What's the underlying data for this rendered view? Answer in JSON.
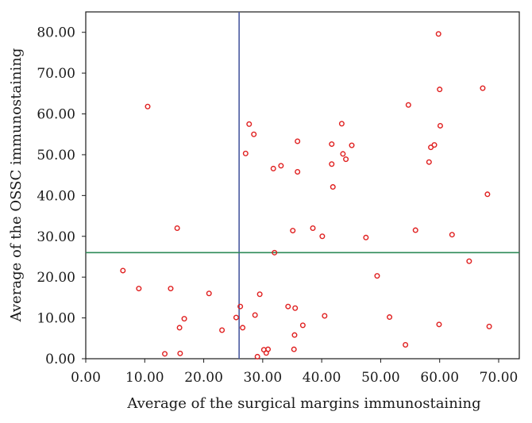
{
  "chart_data": {
    "type": "scatter",
    "xlabel": "Average of the surgical margins immunostaining",
    "ylabel": "Average of the OSSC immunostaining",
    "xlim": [
      0,
      73.5
    ],
    "ylim": [
      0,
      85
    ],
    "x_ticks": [
      "0.00",
      "10.00",
      "20.00",
      "30.00",
      "40.00",
      "50.00",
      "60.00",
      "70.00"
    ],
    "y_ticks": [
      "0.00",
      "10.00",
      "20.00",
      "30.00",
      "40.00",
      "50.00",
      "60.00",
      "70.00",
      "80.00"
    ],
    "reference_lines": {
      "vertical_x": 26.0,
      "horizontal_y": 26.0
    },
    "grid": false,
    "legend": "none",
    "colors": {
      "points": "#e02020",
      "vertical_line": "#4a5aa0",
      "horizontal_line": "#2e8b57",
      "axes": "#1a1a1a"
    },
    "points": [
      {
        "x": 6.3,
        "y": 21.6
      },
      {
        "x": 9.0,
        "y": 17.2
      },
      {
        "x": 10.5,
        "y": 61.8
      },
      {
        "x": 13.4,
        "y": 1.2
      },
      {
        "x": 14.4,
        "y": 17.2
      },
      {
        "x": 15.5,
        "y": 32.0
      },
      {
        "x": 15.9,
        "y": 7.6
      },
      {
        "x": 16.0,
        "y": 1.3
      },
      {
        "x": 16.7,
        "y": 9.8
      },
      {
        "x": 20.9,
        "y": 16.0
      },
      {
        "x": 23.1,
        "y": 7.0
      },
      {
        "x": 25.5,
        "y": 10.1
      },
      {
        "x": 26.2,
        "y": 12.8
      },
      {
        "x": 26.6,
        "y": 7.6
      },
      {
        "x": 27.1,
        "y": 50.3
      },
      {
        "x": 27.7,
        "y": 57.5
      },
      {
        "x": 28.5,
        "y": 55.0
      },
      {
        "x": 28.7,
        "y": 10.7
      },
      {
        "x": 29.1,
        "y": 0.5
      },
      {
        "x": 29.5,
        "y": 15.8
      },
      {
        "x": 30.2,
        "y": 2.2
      },
      {
        "x": 30.6,
        "y": 1.4
      },
      {
        "x": 30.9,
        "y": 2.3
      },
      {
        "x": 31.8,
        "y": 46.6
      },
      {
        "x": 32.0,
        "y": 26.0
      },
      {
        "x": 33.1,
        "y": 47.3
      },
      {
        "x": 34.3,
        "y": 12.8
      },
      {
        "x": 35.1,
        "y": 31.4
      },
      {
        "x": 35.3,
        "y": 2.3
      },
      {
        "x": 35.4,
        "y": 5.8
      },
      {
        "x": 35.5,
        "y": 12.4
      },
      {
        "x": 35.9,
        "y": 53.3
      },
      {
        "x": 35.9,
        "y": 45.8
      },
      {
        "x": 36.8,
        "y": 8.2
      },
      {
        "x": 38.5,
        "y": 32.0
      },
      {
        "x": 40.1,
        "y": 30.0
      },
      {
        "x": 40.5,
        "y": 10.5
      },
      {
        "x": 41.7,
        "y": 52.6
      },
      {
        "x": 41.7,
        "y": 47.7
      },
      {
        "x": 41.9,
        "y": 42.1
      },
      {
        "x": 43.4,
        "y": 57.6
      },
      {
        "x": 43.6,
        "y": 50.2
      },
      {
        "x": 44.1,
        "y": 48.9
      },
      {
        "x": 45.1,
        "y": 52.3
      },
      {
        "x": 47.5,
        "y": 29.7
      },
      {
        "x": 49.4,
        "y": 20.3
      },
      {
        "x": 51.5,
        "y": 10.2
      },
      {
        "x": 54.2,
        "y": 3.4
      },
      {
        "x": 54.7,
        "y": 62.2
      },
      {
        "x": 55.9,
        "y": 31.5
      },
      {
        "x": 58.2,
        "y": 48.2
      },
      {
        "x": 58.5,
        "y": 51.8
      },
      {
        "x": 59.1,
        "y": 52.4
      },
      {
        "x": 59.8,
        "y": 79.6
      },
      {
        "x": 59.9,
        "y": 8.4
      },
      {
        "x": 60.0,
        "y": 66.0
      },
      {
        "x": 60.1,
        "y": 57.1
      },
      {
        "x": 62.1,
        "y": 30.4
      },
      {
        "x": 65.0,
        "y": 23.9
      },
      {
        "x": 67.3,
        "y": 66.3
      },
      {
        "x": 68.1,
        "y": 40.3
      },
      {
        "x": 68.4,
        "y": 7.9
      }
    ]
  }
}
